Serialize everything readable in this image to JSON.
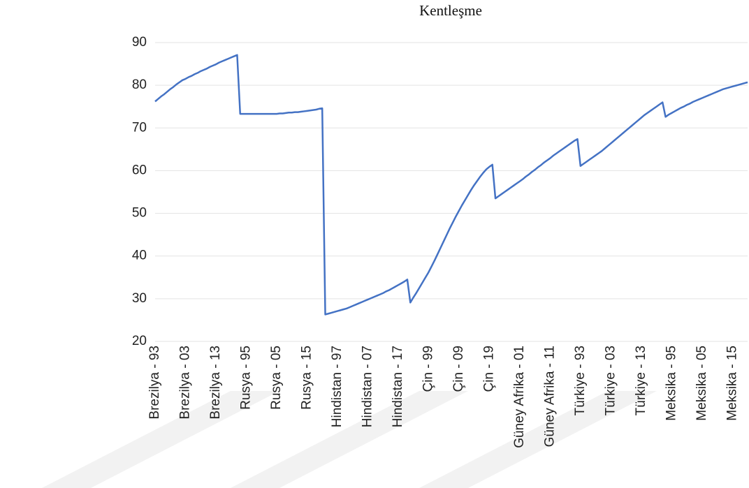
{
  "chart_data": {
    "type": "line",
    "title": "Kentleşme",
    "categories": [
      "Brezilya - 93",
      null,
      null,
      null,
      null,
      null,
      null,
      null,
      null,
      null,
      "Brezilya - 03",
      null,
      null,
      null,
      null,
      null,
      null,
      null,
      null,
      null,
      "Brezilya - 13",
      null,
      null,
      null,
      null,
      null,
      null,
      null,
      null,
      null,
      "Rusya - 95",
      null,
      null,
      null,
      null,
      null,
      null,
      null,
      null,
      null,
      "Rusya - 05",
      null,
      null,
      null,
      null,
      null,
      null,
      null,
      null,
      null,
      "Rusya - 15",
      null,
      null,
      null,
      null,
      null,
      null,
      null,
      null,
      null,
      "Hindistan - 97",
      null,
      null,
      null,
      null,
      null,
      null,
      null,
      null,
      null,
      "Hindistan - 07",
      null,
      null,
      null,
      null,
      null,
      null,
      null,
      null,
      null,
      "Hindistan - 17",
      null,
      null,
      null,
      null,
      null,
      null,
      null,
      null,
      null,
      "Çin - 99",
      null,
      null,
      null,
      null,
      null,
      null,
      null,
      null,
      null,
      "Çin - 09",
      null,
      null,
      null,
      null,
      null,
      null,
      null,
      null,
      null,
      "Çin - 19",
      null,
      null,
      null,
      null,
      null,
      null,
      null,
      null,
      null,
      "Güney Afrika - 01",
      null,
      null,
      null,
      null,
      null,
      null,
      null,
      null,
      null,
      "Güney Afrika - 11",
      null,
      null,
      null,
      null,
      null,
      null,
      null,
      null,
      null,
      "Türkiye - 93",
      null,
      null,
      null,
      null,
      null,
      null,
      null,
      null,
      null,
      "Türkiye - 03",
      null,
      null,
      null,
      null,
      null,
      null,
      null,
      null,
      null,
      "Türkiye - 13",
      null,
      null,
      null,
      null,
      null,
      null,
      null,
      null,
      null,
      "Meksika - 95",
      null,
      null,
      null,
      null,
      null,
      null,
      null,
      null,
      null,
      "Meksika - 05",
      null,
      null,
      null,
      null,
      null,
      null,
      null,
      null,
      null,
      "Meksika - 15",
      null,
      null,
      null,
      null,
      null
    ],
    "values": [
      76.2,
      76.8,
      77.4,
      77.9,
      78.5,
      79.1,
      79.6,
      80.2,
      80.7,
      81.2,
      81.5,
      81.9,
      82.2,
      82.6,
      82.9,
      83.3,
      83.6,
      83.9,
      84.3,
      84.6,
      84.9,
      85.3,
      85.6,
      85.9,
      86.2,
      86.5,
      86.8,
      87.1,
      73.3,
      73.3,
      73.3,
      73.3,
      73.3,
      73.3,
      73.3,
      73.3,
      73.3,
      73.3,
      73.3,
      73.3,
      73.3,
      73.4,
      73.4,
      73.5,
      73.6,
      73.6,
      73.7,
      73.7,
      73.8,
      73.9,
      74.0,
      74.1,
      74.2,
      74.3,
      74.5,
      74.6,
      26.3,
      26.5,
      26.7,
      26.9,
      27.1,
      27.3,
      27.5,
      27.7,
      28.0,
      28.3,
      28.6,
      28.9,
      29.2,
      29.5,
      29.8,
      30.1,
      30.4,
      30.7,
      31.0,
      31.3,
      31.7,
      32.0,
      32.4,
      32.8,
      33.2,
      33.6,
      34.0,
      34.5,
      29.1,
      30.3,
      31.4,
      32.6,
      33.8,
      35.0,
      36.2,
      37.6,
      39.0,
      40.5,
      42.0,
      43.5,
      45.0,
      46.5,
      47.9,
      49.3,
      50.6,
      51.9,
      53.1,
      54.3,
      55.5,
      56.6,
      57.6,
      58.6,
      59.5,
      60.3,
      60.9,
      61.4,
      53.5,
      54.0,
      54.5,
      55.0,
      55.5,
      56.0,
      56.5,
      57.0,
      57.5,
      58.0,
      58.6,
      59.1,
      59.7,
      60.2,
      60.8,
      61.3,
      61.9,
      62.4,
      62.9,
      63.5,
      64.0,
      64.5,
      65.0,
      65.5,
      66.0,
      66.5,
      67.0,
      67.4,
      61.1,
      61.6,
      62.1,
      62.6,
      63.1,
      63.6,
      64.1,
      64.6,
      65.2,
      65.8,
      66.4,
      67.0,
      67.6,
      68.2,
      68.8,
      69.4,
      70.0,
      70.6,
      71.2,
      71.8,
      72.4,
      73.0,
      73.5,
      74.0,
      74.5,
      75.0,
      75.5,
      76.0,
      72.6,
      73.1,
      73.5,
      73.9,
      74.3,
      74.7,
      75.0,
      75.4,
      75.7,
      76.1,
      76.4,
      76.7,
      77.0,
      77.3,
      77.6,
      77.9,
      78.2,
      78.5,
      78.8,
      79.1,
      79.3,
      79.5,
      79.7,
      79.9,
      80.1,
      80.3,
      80.5,
      80.7
    ],
    "color": "#4472c4",
    "ylim": [
      20,
      90
    ],
    "yticks": [
      20,
      30,
      40,
      50,
      60,
      70,
      80,
      90
    ],
    "grid": true
  }
}
